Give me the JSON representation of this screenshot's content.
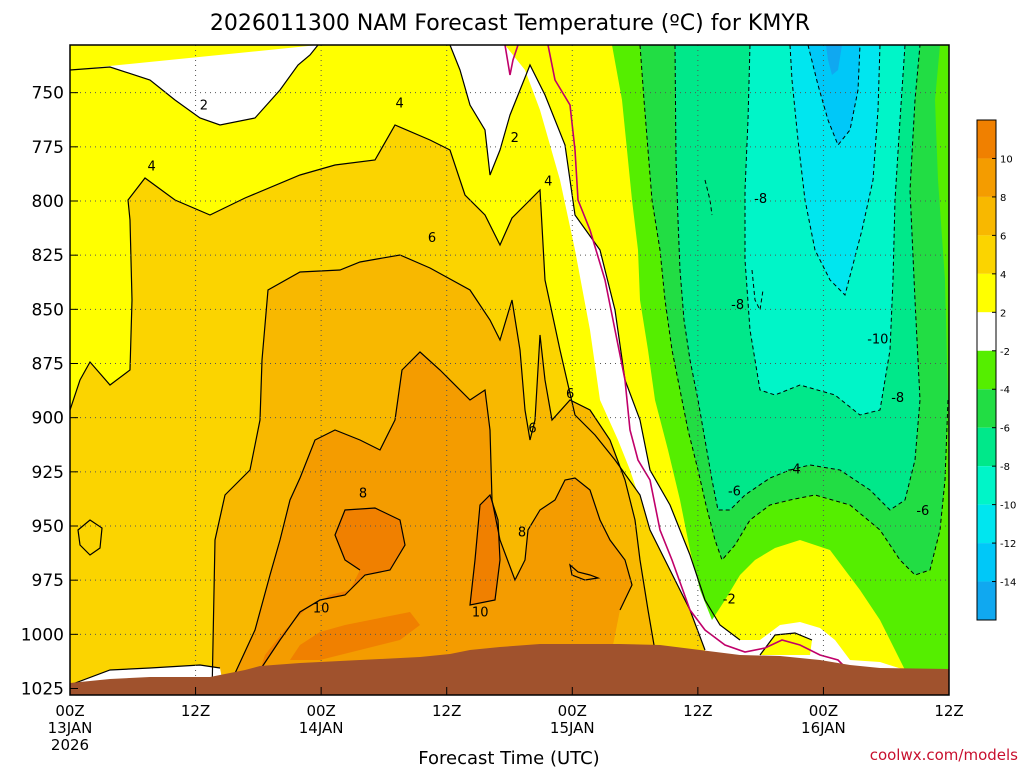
{
  "chart_data": {
    "type": "contour",
    "title": "2026011300 NAM Forecast Temperature (ºC) for KMYR",
    "xlabel": "Forecast Time (UTC)",
    "ylabel": "",
    "credit": "coolwx.com/models",
    "x_ticks": [
      {
        "hours": 0,
        "lines": [
          "00Z",
          "13JAN",
          "2026"
        ]
      },
      {
        "hours": 12,
        "lines": [
          "12Z"
        ]
      },
      {
        "hours": 24,
        "lines": [
          "00Z",
          "14JAN"
        ]
      },
      {
        "hours": 36,
        "lines": [
          "12Z"
        ]
      },
      {
        "hours": 48,
        "lines": [
          "00Z",
          "15JAN"
        ]
      },
      {
        "hours": 60,
        "lines": [
          "12Z"
        ]
      },
      {
        "hours": 72,
        "lines": [
          "00Z",
          "16JAN"
        ]
      },
      {
        "hours": 84,
        "lines": [
          "12Z"
        ]
      }
    ],
    "y_ticks": [
      750,
      775,
      800,
      825,
      850,
      875,
      900,
      925,
      950,
      975,
      1000,
      1025
    ],
    "xlim_hours": [
      0,
      84
    ],
    "ylim_hpa": [
      728,
      1028
    ],
    "grid": true,
    "colorbar": {
      "labels": [
        10,
        8,
        6,
        4,
        2,
        -2,
        -4,
        -6,
        -8,
        -10,
        -12,
        -14
      ],
      "colors": [
        "#f08000",
        "#f49c00",
        "#f8b800",
        "#fbd400",
        "#ffff00",
        "#ffffff",
        "#55ee00",
        "#22dd44",
        "#00e88a",
        "#00f5c8",
        "#00e6ef",
        "#00c8f8",
        "#10a8f0"
      ]
    },
    "contour_labels": [
      {
        "text": "2",
        "h": 12.8,
        "p": 756
      },
      {
        "text": "4",
        "h": 31.5,
        "p": 755
      },
      {
        "text": "4",
        "h": 7.8,
        "p": 784
      },
      {
        "text": "2",
        "h": 42.5,
        "p": 771
      },
      {
        "text": "4",
        "h": 45.7,
        "p": 791
      },
      {
        "text": "6",
        "h": 34.6,
        "p": 817
      },
      {
        "text": "8",
        "h": 28.0,
        "p": 935
      },
      {
        "text": "10",
        "h": 24.0,
        "p": 988
      },
      {
        "text": "6",
        "h": 47.8,
        "p": 889
      },
      {
        "text": "6",
        "h": 44.2,
        "p": 905
      },
      {
        "text": "8",
        "h": 43.2,
        "p": 953
      },
      {
        "text": "10",
        "h": 39.2,
        "p": 990
      },
      {
        "text": "-8",
        "h": 66.0,
        "p": 799
      },
      {
        "text": "-8",
        "h": 63.8,
        "p": 848
      },
      {
        "text": "-10",
        "h": 77.2,
        "p": 864
      },
      {
        "text": "-8",
        "h": 79.1,
        "p": 891
      },
      {
        "text": "-4",
        "h": 69.2,
        "p": 924
      },
      {
        "text": "-6",
        "h": 63.5,
        "p": 934
      },
      {
        "text": "-6",
        "h": 81.5,
        "p": 943
      },
      {
        "text": "-2",
        "h": 63.0,
        "p": 984
      }
    ]
  }
}
